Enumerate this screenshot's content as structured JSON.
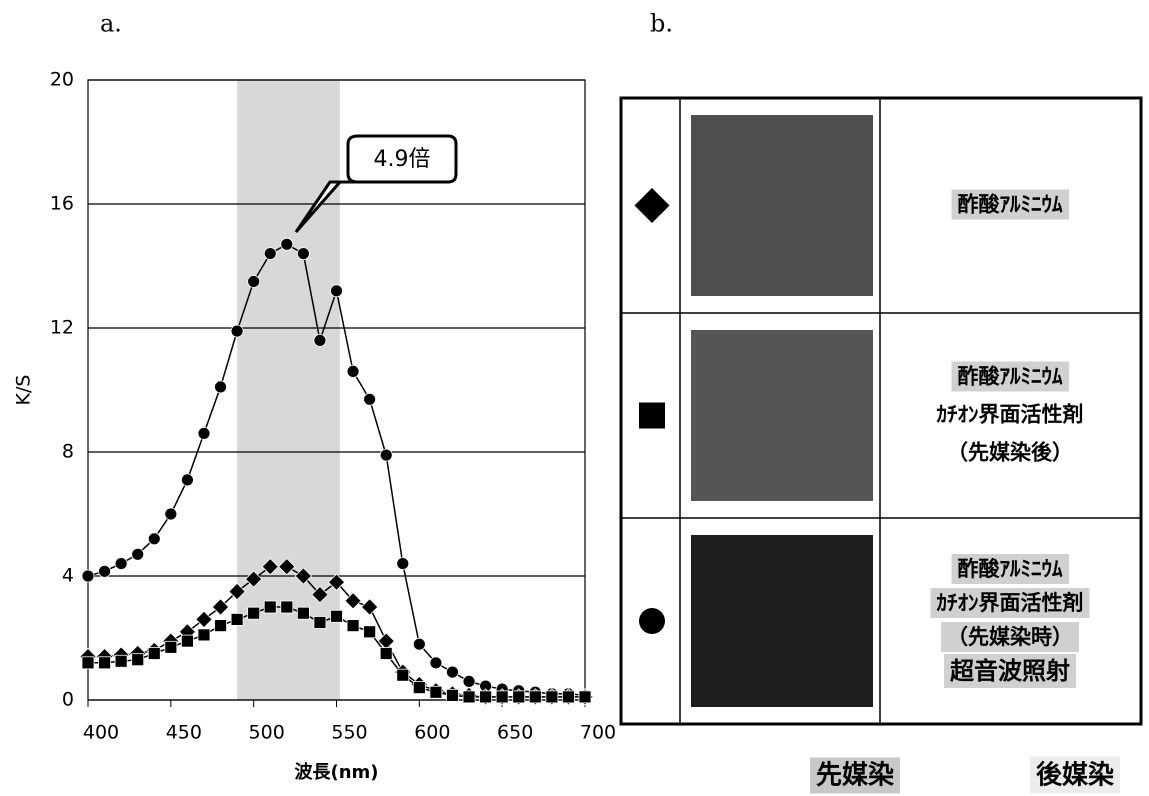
{
  "panel_labels": [
    "a.",
    "b."
  ],
  "chart_data": {
    "type": "line",
    "xlabel": "波長(nm)",
    "ylabel": "K/S",
    "x": [
      400,
      410,
      420,
      430,
      440,
      450,
      460,
      470,
      480,
      490,
      500,
      510,
      520,
      530,
      540,
      550,
      560,
      570,
      580,
      590,
      600,
      610,
      620,
      630,
      640,
      650,
      660,
      670,
      680,
      690,
      700
    ],
    "series": [
      {
        "marker": "circle",
        "color": "#000000",
        "values": [
          4.0,
          4.15,
          4.4,
          4.7,
          5.2,
          6.0,
          7.1,
          8.6,
          10.1,
          11.9,
          13.5,
          14.4,
          14.7,
          14.4,
          11.6,
          13.2,
          10.6,
          9.7,
          7.9,
          4.4,
          1.8,
          1.2,
          0.9,
          0.6,
          0.45,
          0.35,
          0.3,
          0.25,
          0.2,
          0.2,
          0.15
        ]
      },
      {
        "marker": "diamond",
        "color": "#000000",
        "values": [
          1.4,
          1.4,
          1.45,
          1.5,
          1.6,
          1.9,
          2.2,
          2.6,
          3.0,
          3.5,
          3.9,
          4.3,
          4.3,
          4.0,
          3.4,
          3.8,
          3.2,
          3.0,
          1.9,
          0.9,
          0.5,
          0.3,
          0.2,
          0.15,
          0.1,
          0.1,
          0.1,
          0.1,
          0.1,
          0.1,
          0.1
        ]
      },
      {
        "marker": "square",
        "color": "#000000",
        "values": [
          1.2,
          1.2,
          1.25,
          1.3,
          1.5,
          1.7,
          1.9,
          2.1,
          2.4,
          2.6,
          2.8,
          3.0,
          3.0,
          2.8,
          2.5,
          2.7,
          2.4,
          2.2,
          1.5,
          0.8,
          0.4,
          0.25,
          0.15,
          0.1,
          0.1,
          0.1,
          0.1,
          0.1,
          0.1,
          0.1,
          0.1
        ]
      }
    ],
    "highlight": [
      490,
      552
    ],
    "highlight_color": "#d8d8d8",
    "annotation": "4.9倍",
    "xlim": [
      400,
      700
    ],
    "xticks": [
      400,
      450,
      500,
      550,
      600,
      650,
      700
    ],
    "ylim": [
      0,
      20
    ],
    "yticks": [
      0,
      4,
      8,
      12,
      16,
      20
    ],
    "grid": true
  },
  "table": {
    "rows": [
      {
        "marker": "diamond",
        "swatch": "#4e4e4e",
        "lines": [
          {
            "text": "酢酸ｱﾙﾐﾆｳﾑ",
            "background": "#d0d0d0"
          }
        ]
      },
      {
        "marker": "square",
        "swatch": "#555555",
        "lines": [
          {
            "text": "酢酸ｱﾙﾐﾆｳﾑ",
            "background": "#d0d0d0"
          },
          {
            "text": "ｶﾁｵﾝ界面活性剤"
          },
          {
            "text": "（先媒染後）"
          }
        ]
      },
      {
        "marker": "circle",
        "swatch": "#1e1e1e",
        "lines": [
          {
            "text": "酢酸ｱﾙﾐﾆｳﾑ",
            "background": "#d0d0d0"
          },
          {
            "text": "ｶﾁｵﾝ界面活性剤",
            "background": "#d0d0d0"
          },
          {
            "text": "（先媒染時）",
            "background": "#d0d0d0"
          },
          {
            "text": "超音波照射",
            "background": "#d0d0d0"
          }
        ]
      }
    ]
  },
  "legend": [
    {
      "text": "先媒染",
      "background": "#c8c8c8"
    },
    {
      "text": "後媒染",
      "background": "#ececec"
    }
  ]
}
